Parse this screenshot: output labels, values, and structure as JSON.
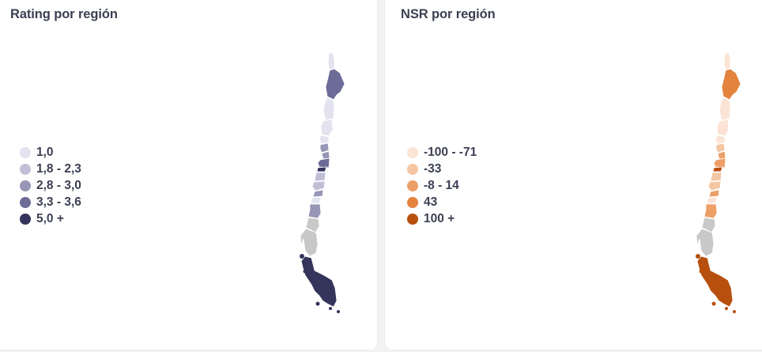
{
  "rating_panel": {
    "title": "Rating por región",
    "legend": [
      {
        "label": "1,0",
        "color": "#e3e2ef"
      },
      {
        "label": "1,8 - 2,3",
        "color": "#c0bfd7"
      },
      {
        "label": "2,8 - 3,0",
        "color": "#9896b6"
      },
      {
        "label": "3,3 - 3,6",
        "color": "#6d6b97"
      },
      {
        "label": "5,0 +",
        "color": "#34345c"
      }
    ],
    "region_colors": [
      "#e3e2ef",
      "#6d6b97",
      "#e3e2ef",
      "#e3e2ef",
      "#e3e2ef",
      "#9896b6",
      "#9896b6",
      "#6d6b97",
      "#34345c",
      "#c0bfd7",
      "#c0bfd7",
      "#9896b6",
      "#e3e2ef",
      "#9896b6",
      "#c8c8c8",
      "#c8c8c8",
      "#34345c"
    ]
  },
  "nsr_panel": {
    "title": "NSR por región",
    "legend": [
      {
        "label": "-100 - -71",
        "color": "#fbe4d5"
      },
      {
        "label": "-33",
        "color": "#f4c6a3"
      },
      {
        "label": "-8 - 14",
        "color": "#ec9f67"
      },
      {
        "label": "43",
        "color": "#e3833e"
      },
      {
        "label": "100 +",
        "color": "#b7500f"
      }
    ],
    "region_colors": [
      "#fbe4d5",
      "#e3833e",
      "#fbe4d5",
      "#fbe4d5",
      "#fbe4d5",
      "#f4c6a3",
      "#ec9f67",
      "#ec9f67",
      "#b7500f",
      "#f4c6a3",
      "#f4c6a3",
      "#ec9f67",
      "#fbe4d5",
      "#ec9f67",
      "#c8c8c8",
      "#c8c8c8",
      "#b7500f"
    ]
  }
}
